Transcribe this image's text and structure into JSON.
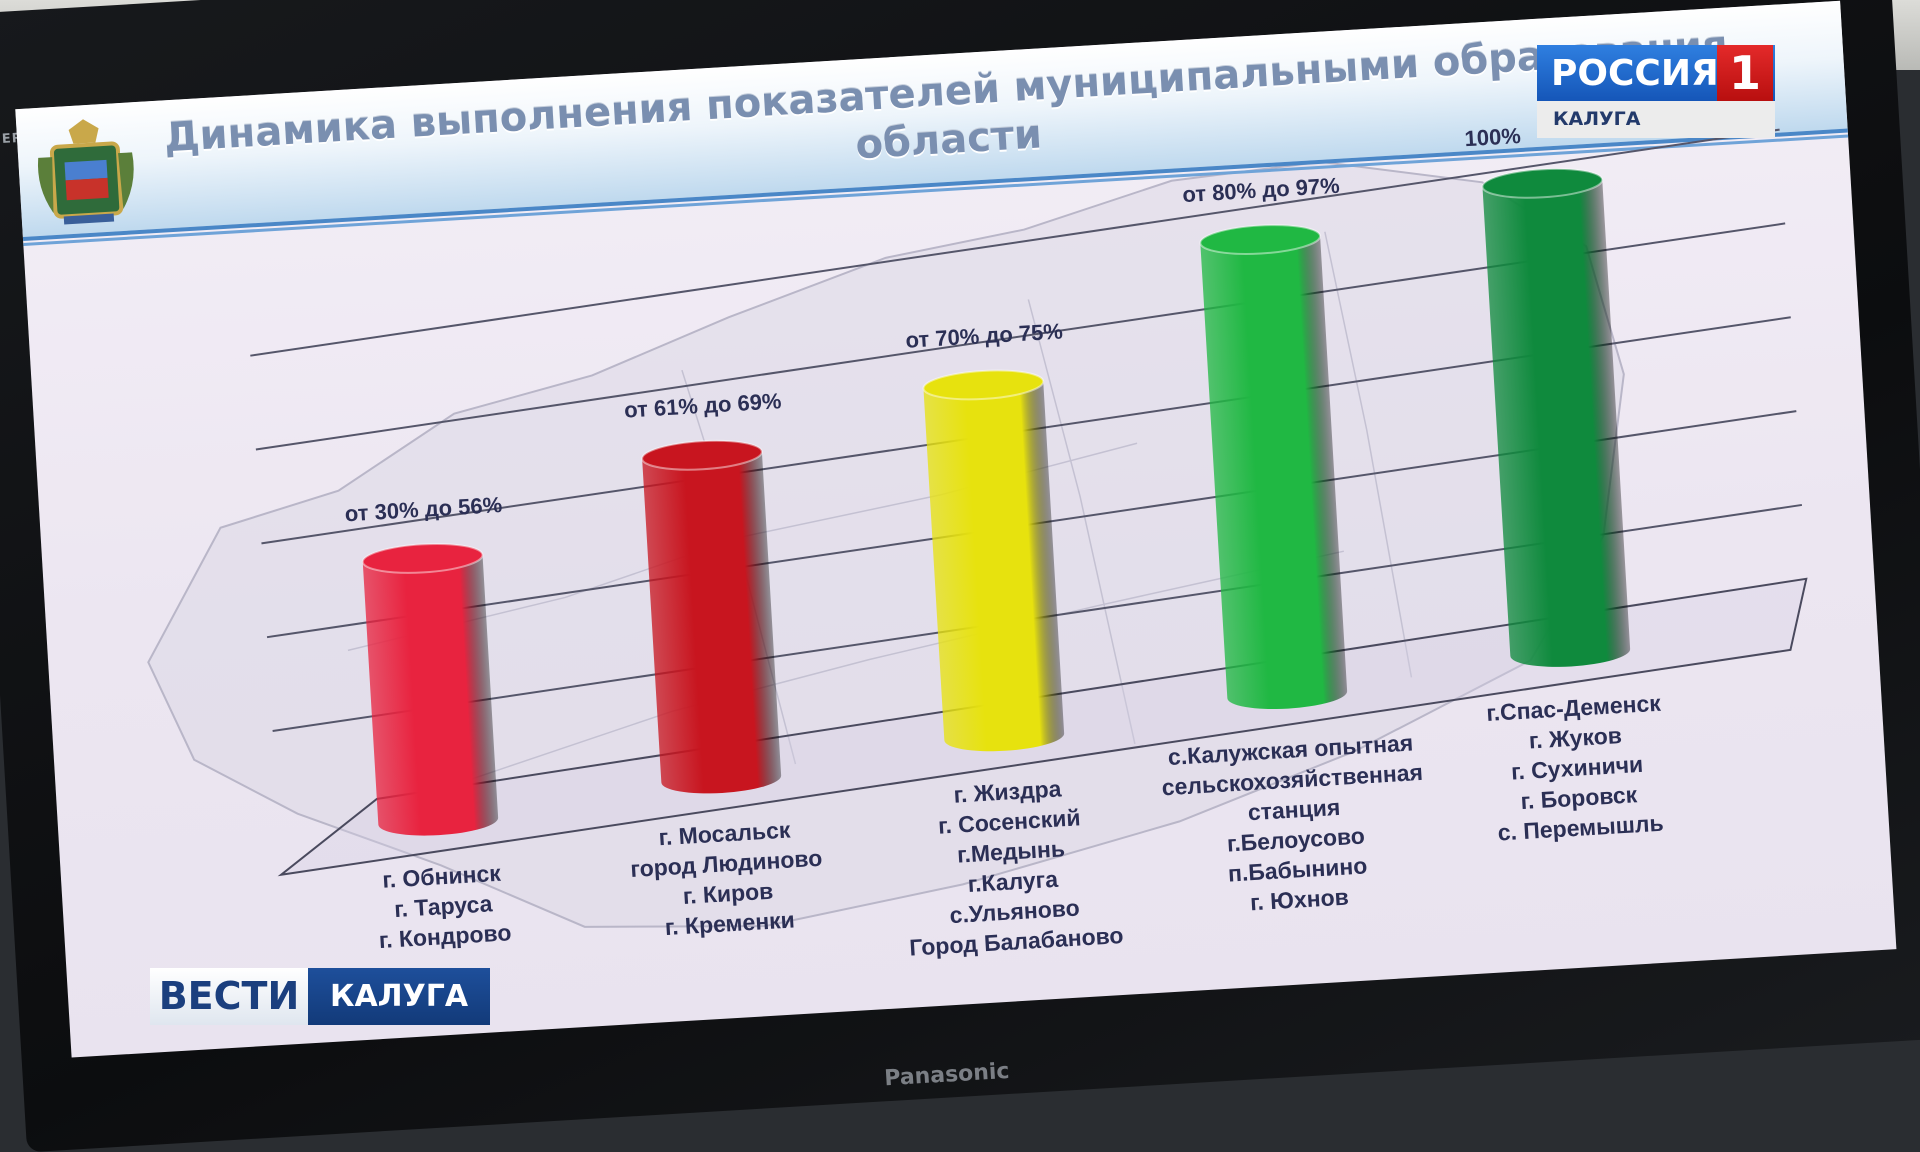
{
  "slide": {
    "title_line1": "Динамика выполнения показателей муниципальными образования",
    "title_line2": "области"
  },
  "chart_data": {
    "type": "bar",
    "title": "Динамика выполнения показателей муниципальными образования области",
    "categories": [
      [
        "г. Обнинск",
        "г. Таруса",
        "г. Кондрово"
      ],
      [
        "г. Мосальск",
        "город Людиново",
        "г. Киров",
        "г. Кременки"
      ],
      [
        "г. Жиздра",
        "г. Сосенский",
        "г.Медынь",
        "г.Калуга",
        "с.Ульяново",
        "Город Балабаново"
      ],
      [
        "с.Калужская опытная",
        "сельскохозяйственная",
        "станция",
        "г.Белоусово",
        "п.Бабынино",
        "г. Юхнов"
      ],
      [
        "г.Спас-Деменск",
        "г. Жуков",
        "г. Сухиничи",
        "г. Боровск",
        "с. Перемышль"
      ]
    ],
    "range_labels": [
      "от 30% до 56%",
      "от 61% до 69%",
      "от 70% до 75%",
      "от 80% до 97%",
      "100%"
    ],
    "values": [
      56,
      69,
      75,
      97,
      100
    ],
    "colors": [
      "#e8233f",
      "#c8151f",
      "#e7e20e",
      "#20b843",
      "#0f8a3d"
    ],
    "ylim": [
      0,
      100
    ],
    "grid": true
  },
  "overlay": {
    "channel_name": "РОССИЯ",
    "channel_number": "1",
    "channel_region": "КАЛУГА",
    "vesti_left": "ВЕСТИ",
    "vesti_right": "КАЛУГА"
  },
  "bezel": {
    "brand_top": "VIERA",
    "brand_bottom": "Panasonic"
  }
}
